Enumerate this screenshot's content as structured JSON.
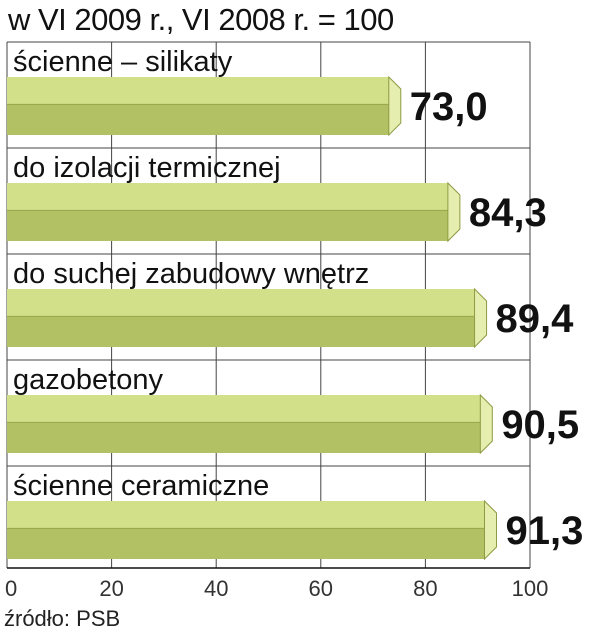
{
  "chart_data": {
    "type": "bar",
    "orientation": "horizontal",
    "title": "w VI 2009 r., VI 2008 r. = 100",
    "categories": [
      "ścienne – silikaty",
      "do izolacji termicznej",
      "do suchej zabudowy wnętrz",
      "gazobetony",
      "ścienne ceramiczne"
    ],
    "values": [
      73.0,
      84.3,
      89.4,
      90.5,
      91.3
    ],
    "value_labels": [
      "73,0",
      "84,3",
      "89,4",
      "90,5",
      "91,3"
    ],
    "xlim": [
      0,
      100
    ],
    "xticks": [
      0,
      20,
      40,
      60,
      80,
      100
    ],
    "grid": true,
    "legend": "none",
    "colors": {
      "bar_top": "#d2e08a",
      "bar_front": "#b3c165",
      "bar_end": "#e6eeaf",
      "bar_edge": "#8e9b43",
      "grid": "#444444"
    }
  },
  "source": "źródło: PSB"
}
